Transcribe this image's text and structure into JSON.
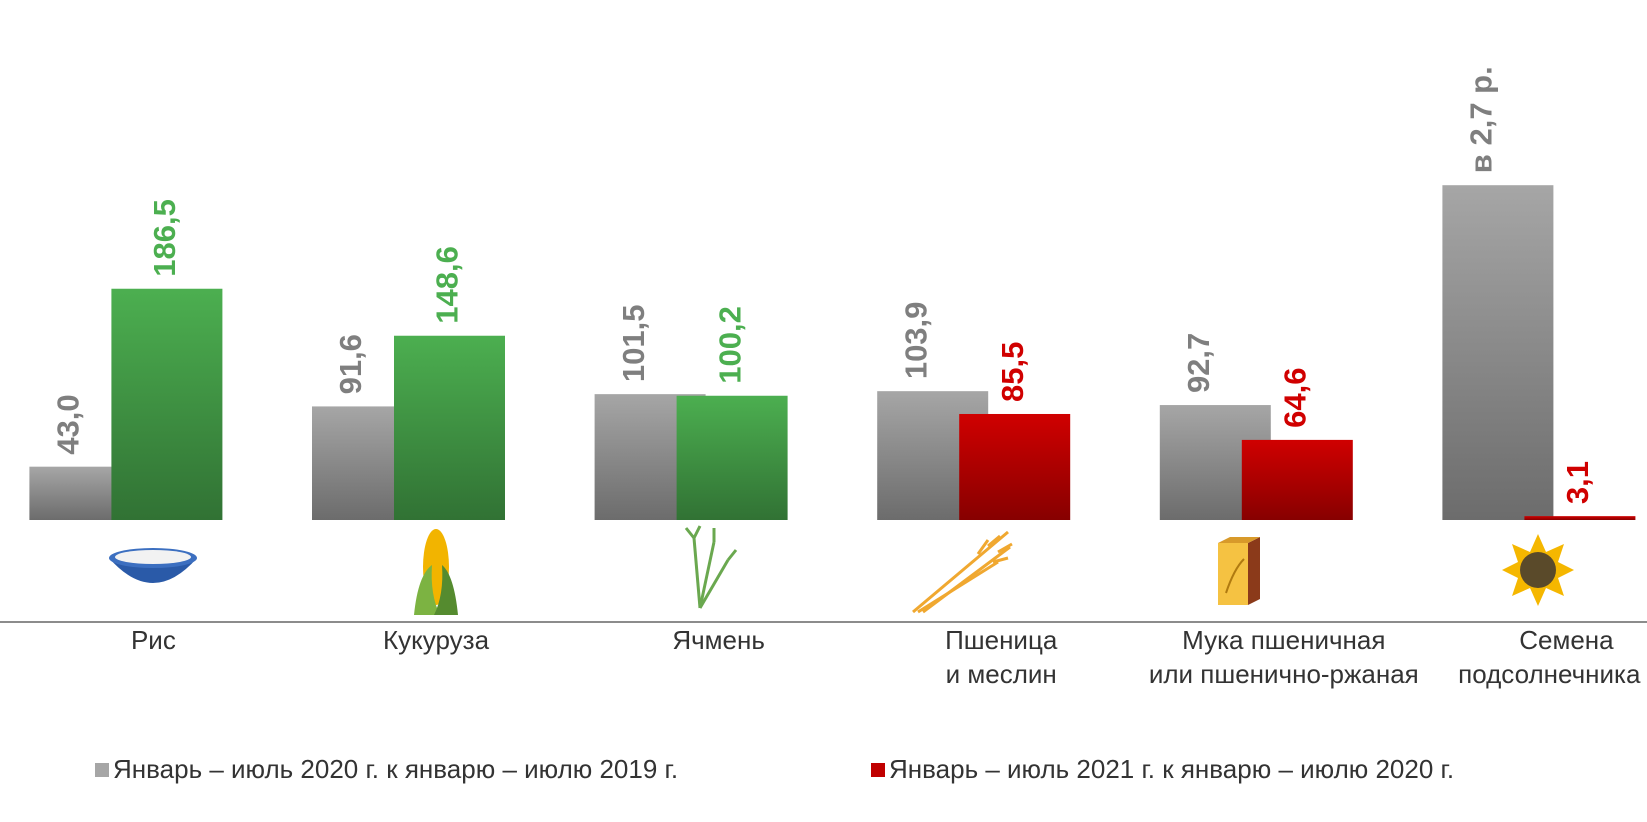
{
  "chart_data": {
    "type": "bar",
    "categories": [
      [
        "Рис"
      ],
      [
        "Кукуруза"
      ],
      [
        "Ячмень"
      ],
      [
        "Пшеница",
        "и меслин"
      ],
      [
        "Мука пшеничная",
        "или пшенично-ржаная"
      ],
      [
        "Семена",
        "подсолнечника"
      ]
    ],
    "series": [
      {
        "name": "Январь – июль 2020 г. к январю – июлю 2019 г.",
        "color": "#a6a6a6",
        "values": [
          43.0,
          91.6,
          101.5,
          103.9,
          92.7,
          270
        ],
        "value_labels": [
          "43,0",
          "91,6",
          "101,5",
          "103,9",
          "92,7",
          "в 2,7 р."
        ]
      },
      {
        "name": "Январь – июль 2021 г. к январю – июлю 2020 г.",
        "color": "#c00000",
        "values": [
          186.5,
          148.6,
          100.2,
          85.5,
          64.6,
          3.1
        ],
        "value_labels": [
          "186,5",
          "148,6",
          "100,2",
          "85,5",
          "64,6",
          "3,1"
        ],
        "colors": [
          "#4caf50",
          "#4caf50",
          "#4caf50",
          "#d00000",
          "#d00000",
          "#d00000"
        ]
      }
    ],
    "ylim": [
      0,
      400
    ],
    "legend": "bottom"
  }
}
